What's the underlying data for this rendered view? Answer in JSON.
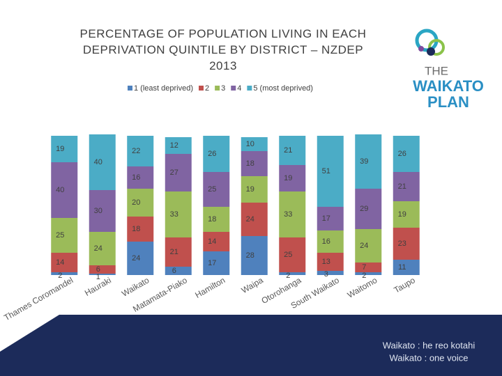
{
  "chart_data": {
    "type": "stacked_bar",
    "title": "PERCENTAGE OF POPULATION LIVING IN EACH DEPRIVATION QUINTILE BY DISTRICT – NZDEP 2013",
    "categories": [
      "Thames Coromandel",
      "Hauraki",
      "Waikato",
      "Matamata-Piako",
      "Hamilton",
      "Waipa",
      "Otorohanga",
      "South Waikato",
      "Waitomo",
      "Taupo"
    ],
    "series": [
      {
        "name": "1 (least deprived)",
        "color": "#4f81bd",
        "values": [
          2,
          1,
          24,
          6,
          17,
          28,
          2,
          3,
          2,
          11
        ]
      },
      {
        "name": "2",
        "color": "#c0504d",
        "values": [
          14,
          6,
          18,
          21,
          14,
          24,
          25,
          13,
          7,
          23
        ]
      },
      {
        "name": "3",
        "color": "#9bbb59",
        "values": [
          25,
          24,
          20,
          33,
          18,
          19,
          33,
          16,
          24,
          19
        ]
      },
      {
        "name": "4",
        "color": "#8064a2",
        "values": [
          40,
          30,
          16,
          27,
          25,
          18,
          19,
          17,
          29,
          21
        ]
      },
      {
        "name": "5 (most deprived)",
        "color": "#4bacc6",
        "values": [
          19,
          40,
          22,
          12,
          26,
          10,
          21,
          51,
          39,
          26
        ]
      }
    ],
    "ylim": [
      0,
      100
    ]
  },
  "logo": {
    "line1": "THE",
    "line2": "WAIKATO",
    "line3": "PLAN"
  },
  "footer": {
    "line1": "Waikato : he reo kotahi",
    "line2": "Waikato : one voice"
  }
}
